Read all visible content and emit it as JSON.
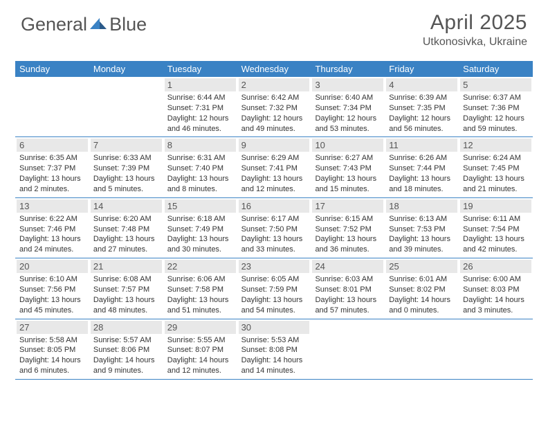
{
  "logo": {
    "text1": "General",
    "text2": "Blue"
  },
  "title": "April 2025",
  "location": "Utkonosivka, Ukraine",
  "colors": {
    "header_bg": "#3a82c4",
    "header_fg": "#ffffff",
    "daynum_bg": "#e8e8e8",
    "row_border": "#3a82c4",
    "text": "#333333",
    "logo_text": "#555555"
  },
  "dayHeaders": [
    "Sunday",
    "Monday",
    "Tuesday",
    "Wednesday",
    "Thursday",
    "Friday",
    "Saturday"
  ],
  "startOffset": 2,
  "days": [
    {
      "n": 1,
      "sr": "6:44 AM",
      "ss": "7:31 PM",
      "dl": "12 hours and 46 minutes."
    },
    {
      "n": 2,
      "sr": "6:42 AM",
      "ss": "7:32 PM",
      "dl": "12 hours and 49 minutes."
    },
    {
      "n": 3,
      "sr": "6:40 AM",
      "ss": "7:34 PM",
      "dl": "12 hours and 53 minutes."
    },
    {
      "n": 4,
      "sr": "6:39 AM",
      "ss": "7:35 PM",
      "dl": "12 hours and 56 minutes."
    },
    {
      "n": 5,
      "sr": "6:37 AM",
      "ss": "7:36 PM",
      "dl": "12 hours and 59 minutes."
    },
    {
      "n": 6,
      "sr": "6:35 AM",
      "ss": "7:37 PM",
      "dl": "13 hours and 2 minutes."
    },
    {
      "n": 7,
      "sr": "6:33 AM",
      "ss": "7:39 PM",
      "dl": "13 hours and 5 minutes."
    },
    {
      "n": 8,
      "sr": "6:31 AM",
      "ss": "7:40 PM",
      "dl": "13 hours and 8 minutes."
    },
    {
      "n": 9,
      "sr": "6:29 AM",
      "ss": "7:41 PM",
      "dl": "13 hours and 12 minutes."
    },
    {
      "n": 10,
      "sr": "6:27 AM",
      "ss": "7:43 PM",
      "dl": "13 hours and 15 minutes."
    },
    {
      "n": 11,
      "sr": "6:26 AM",
      "ss": "7:44 PM",
      "dl": "13 hours and 18 minutes."
    },
    {
      "n": 12,
      "sr": "6:24 AM",
      "ss": "7:45 PM",
      "dl": "13 hours and 21 minutes."
    },
    {
      "n": 13,
      "sr": "6:22 AM",
      "ss": "7:46 PM",
      "dl": "13 hours and 24 minutes."
    },
    {
      "n": 14,
      "sr": "6:20 AM",
      "ss": "7:48 PM",
      "dl": "13 hours and 27 minutes."
    },
    {
      "n": 15,
      "sr": "6:18 AM",
      "ss": "7:49 PM",
      "dl": "13 hours and 30 minutes."
    },
    {
      "n": 16,
      "sr": "6:17 AM",
      "ss": "7:50 PM",
      "dl": "13 hours and 33 minutes."
    },
    {
      "n": 17,
      "sr": "6:15 AM",
      "ss": "7:52 PM",
      "dl": "13 hours and 36 minutes."
    },
    {
      "n": 18,
      "sr": "6:13 AM",
      "ss": "7:53 PM",
      "dl": "13 hours and 39 minutes."
    },
    {
      "n": 19,
      "sr": "6:11 AM",
      "ss": "7:54 PM",
      "dl": "13 hours and 42 minutes."
    },
    {
      "n": 20,
      "sr": "6:10 AM",
      "ss": "7:56 PM",
      "dl": "13 hours and 45 minutes."
    },
    {
      "n": 21,
      "sr": "6:08 AM",
      "ss": "7:57 PM",
      "dl": "13 hours and 48 minutes."
    },
    {
      "n": 22,
      "sr": "6:06 AM",
      "ss": "7:58 PM",
      "dl": "13 hours and 51 minutes."
    },
    {
      "n": 23,
      "sr": "6:05 AM",
      "ss": "7:59 PM",
      "dl": "13 hours and 54 minutes."
    },
    {
      "n": 24,
      "sr": "6:03 AM",
      "ss": "8:01 PM",
      "dl": "13 hours and 57 minutes."
    },
    {
      "n": 25,
      "sr": "6:01 AM",
      "ss": "8:02 PM",
      "dl": "14 hours and 0 minutes."
    },
    {
      "n": 26,
      "sr": "6:00 AM",
      "ss": "8:03 PM",
      "dl": "14 hours and 3 minutes."
    },
    {
      "n": 27,
      "sr": "5:58 AM",
      "ss": "8:05 PM",
      "dl": "14 hours and 6 minutes."
    },
    {
      "n": 28,
      "sr": "5:57 AM",
      "ss": "8:06 PM",
      "dl": "14 hours and 9 minutes."
    },
    {
      "n": 29,
      "sr": "5:55 AM",
      "ss": "8:07 PM",
      "dl": "14 hours and 12 minutes."
    },
    {
      "n": 30,
      "sr": "5:53 AM",
      "ss": "8:08 PM",
      "dl": "14 hours and 14 minutes."
    }
  ],
  "labels": {
    "sunrise": "Sunrise:",
    "sunset": "Sunset:",
    "daylight": "Daylight:"
  }
}
